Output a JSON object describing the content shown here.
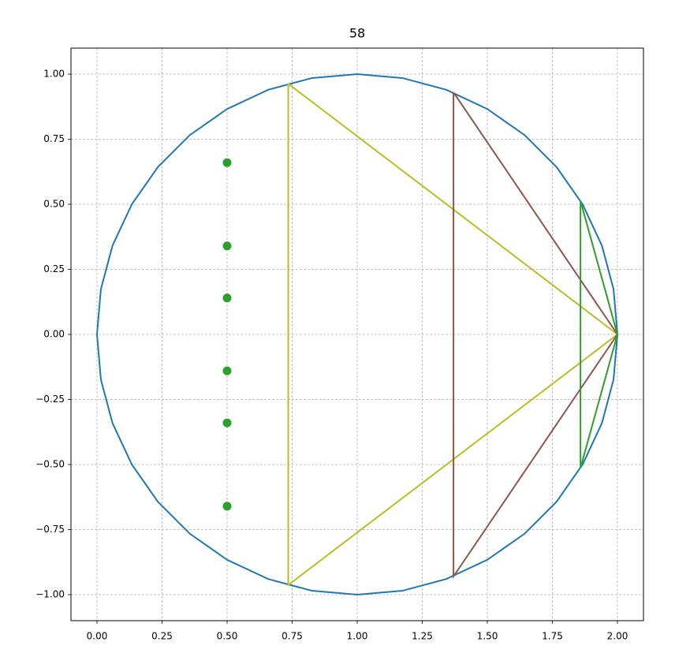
{
  "chart_data": {
    "type": "line",
    "title": "58",
    "xlim": [
      -0.1,
      2.1
    ],
    "ylim": [
      -1.1,
      1.1
    ],
    "grid": true,
    "xticks": [
      {
        "value": 0,
        "label": "0.00"
      },
      {
        "value": 0.25,
        "label": "0.25"
      },
      {
        "value": 0.5,
        "label": "0.50"
      },
      {
        "value": 0.75,
        "label": "0.75"
      },
      {
        "value": 1,
        "label": "1.00"
      },
      {
        "value": 1.25,
        "label": "1.25"
      },
      {
        "value": 1.5,
        "label": "1.50"
      },
      {
        "value": 1.75,
        "label": "1.75"
      },
      {
        "value": 2,
        "label": "2.00"
      }
    ],
    "yticks": [
      {
        "value": -1,
        "label": "−1.00"
      },
      {
        "value": -0.75,
        "label": "−0.75"
      },
      {
        "value": -0.5,
        "label": "−0.50"
      },
      {
        "value": -0.25,
        "label": "−0.25"
      },
      {
        "value": 0,
        "label": "0.00"
      },
      {
        "value": 0.25,
        "label": "0.25"
      },
      {
        "value": 0.5,
        "label": "0.50"
      },
      {
        "value": 0.75,
        "label": "0.75"
      },
      {
        "value": 1,
        "label": "1.00"
      }
    ],
    "series": [
      {
        "style": "line",
        "color": "#1f77b4",
        "x": [
          2,
          1.985,
          1.94,
          1.866,
          1.766,
          1.643,
          1.5,
          1.342,
          1.174,
          1,
          0.826,
          0.658,
          0.5,
          0.357,
          0.234,
          0.134,
          0.06,
          0.015,
          0,
          0.015,
          0.06,
          0.134,
          0.234,
          0.357,
          0.5,
          0.658,
          0.826,
          1,
          1.174,
          1.342,
          1.5,
          1.643,
          1.766,
          1.866,
          1.94,
          1.985,
          2
        ],
        "y": [
          0,
          0.174,
          0.342,
          0.5,
          0.643,
          0.766,
          0.866,
          0.94,
          0.985,
          1,
          0.985,
          0.94,
          0.866,
          0.766,
          0.643,
          0.5,
          0.342,
          0.174,
          0,
          -0.174,
          -0.342,
          -0.5,
          -0.643,
          -0.766,
          -0.866,
          -0.94,
          -0.985,
          -1,
          -0.985,
          -0.94,
          -0.866,
          -0.766,
          -0.643,
          -0.5,
          -0.342,
          -0.174,
          0
        ]
      },
      {
        "style": "line",
        "color": "#bcbd22",
        "x": [
          0.735,
          2,
          0.735,
          0.735
        ],
        "y": [
          0.963,
          0,
          -0.963,
          0.963
        ]
      },
      {
        "style": "line",
        "color": "#8c564b",
        "x": [
          1.37,
          2,
          1.37,
          1.37
        ],
        "y": [
          0.93,
          0,
          -0.93,
          0.93
        ]
      },
      {
        "style": "line",
        "color": "#2ca02c",
        "x": [
          1.858,
          2,
          1.858,
          1.858
        ],
        "y": [
          0.513,
          0,
          -0.513,
          0.513
        ]
      },
      {
        "style": "points",
        "color": "#2ca02c",
        "x": [
          0.5,
          0.5,
          0.5,
          0.5,
          0.5,
          0.5
        ],
        "y": [
          0.66,
          0.34,
          0.14,
          -0.14,
          -0.34,
          -0.66
        ]
      }
    ]
  }
}
